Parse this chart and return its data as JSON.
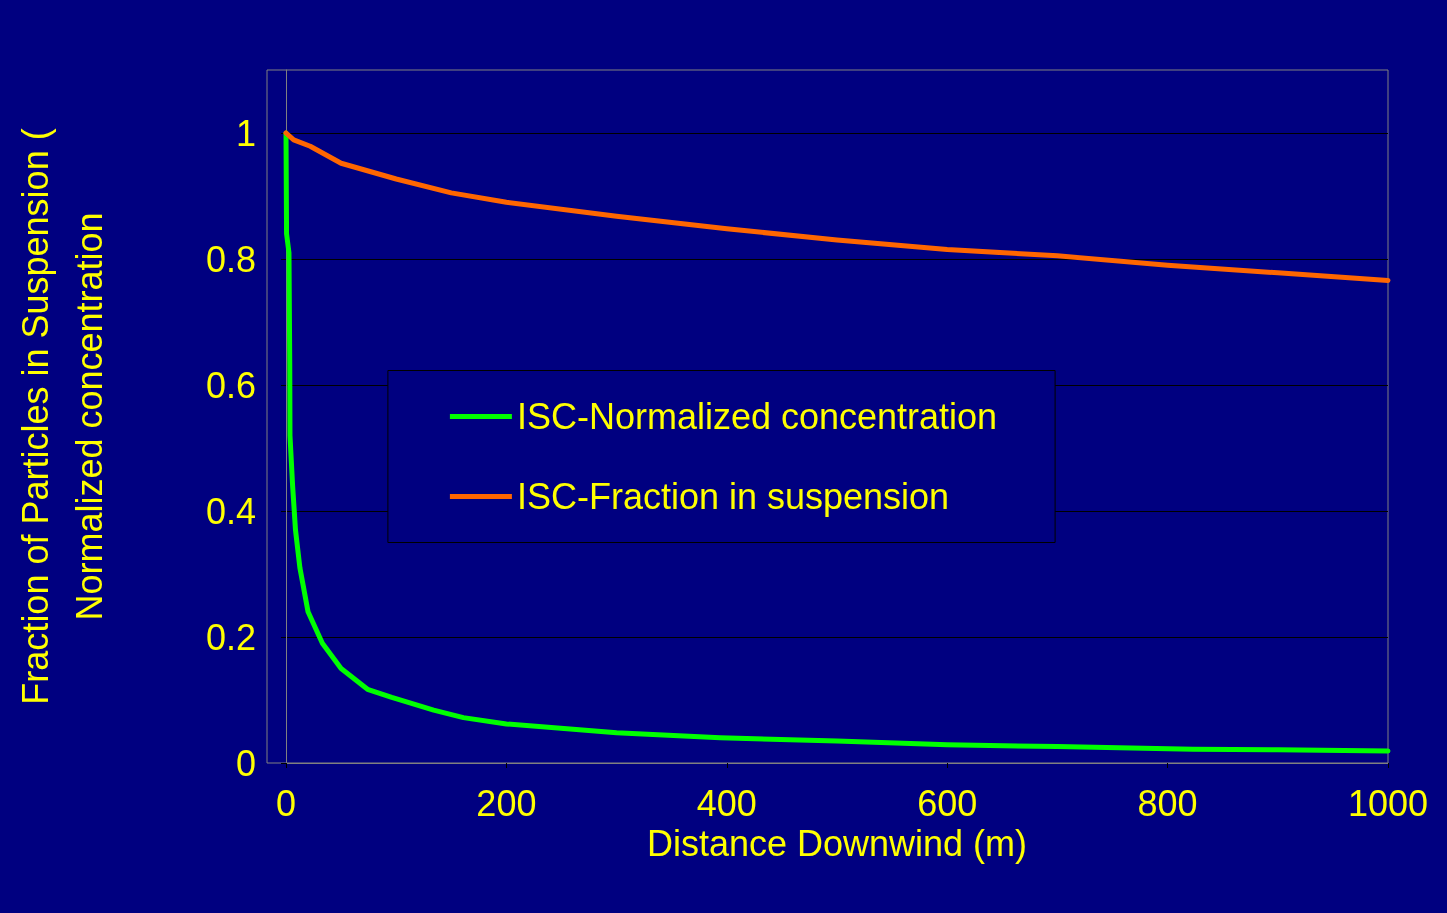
{
  "chart_data": {
    "type": "line",
    "xlabel": "Distance Downwind (m)",
    "ylabel": "Fraction of Particles in Suspension (\nNormalized concentration",
    "xlim": [
      0,
      1000
    ],
    "xticks": [
      0,
      200,
      400,
      600,
      800,
      1000
    ],
    "ylim": [
      0,
      1.1
    ],
    "yticks": [
      0,
      0.2,
      0.4,
      0.6,
      0.8,
      1
    ],
    "grid": "y",
    "legend": "center",
    "line_style": "solid",
    "marker": "none",
    "series": [
      {
        "name": "ISC-Normalized concentration",
        "color": "#00ff00",
        "x": [
          0,
          0.5,
          2.7,
          3.4,
          3.6,
          6,
          8.6,
          12.6,
          20,
          33,
          50,
          74,
          96,
          134,
          161,
          200,
          300,
          394,
          500,
          600,
          700,
          823,
          900,
          1000
        ],
        "values": [
          1,
          0.84,
          0.81,
          0.63,
          0.52,
          0.44,
          0.37,
          0.31,
          0.24,
          0.19,
          0.15,
          0.117,
          0.104,
          0.084,
          0.072,
          0.062,
          0.048,
          0.04,
          0.035,
          0.029,
          0.026,
          0.022,
          0.021,
          0.019
        ]
      },
      {
        "name": "ISC-Fraction in suspension",
        "color": "#ff6600",
        "x": [
          0,
          7,
          22,
          50,
          100,
          150,
          200,
          300,
          400,
          500,
          600,
          700,
          800,
          900,
          1000
        ],
        "values": [
          1,
          0.989,
          0.979,
          0.952,
          0.927,
          0.905,
          0.89,
          0.868,
          0.848,
          0.83,
          0.815,
          0.805,
          0.79,
          0.778,
          0.766
        ]
      }
    ]
  }
}
